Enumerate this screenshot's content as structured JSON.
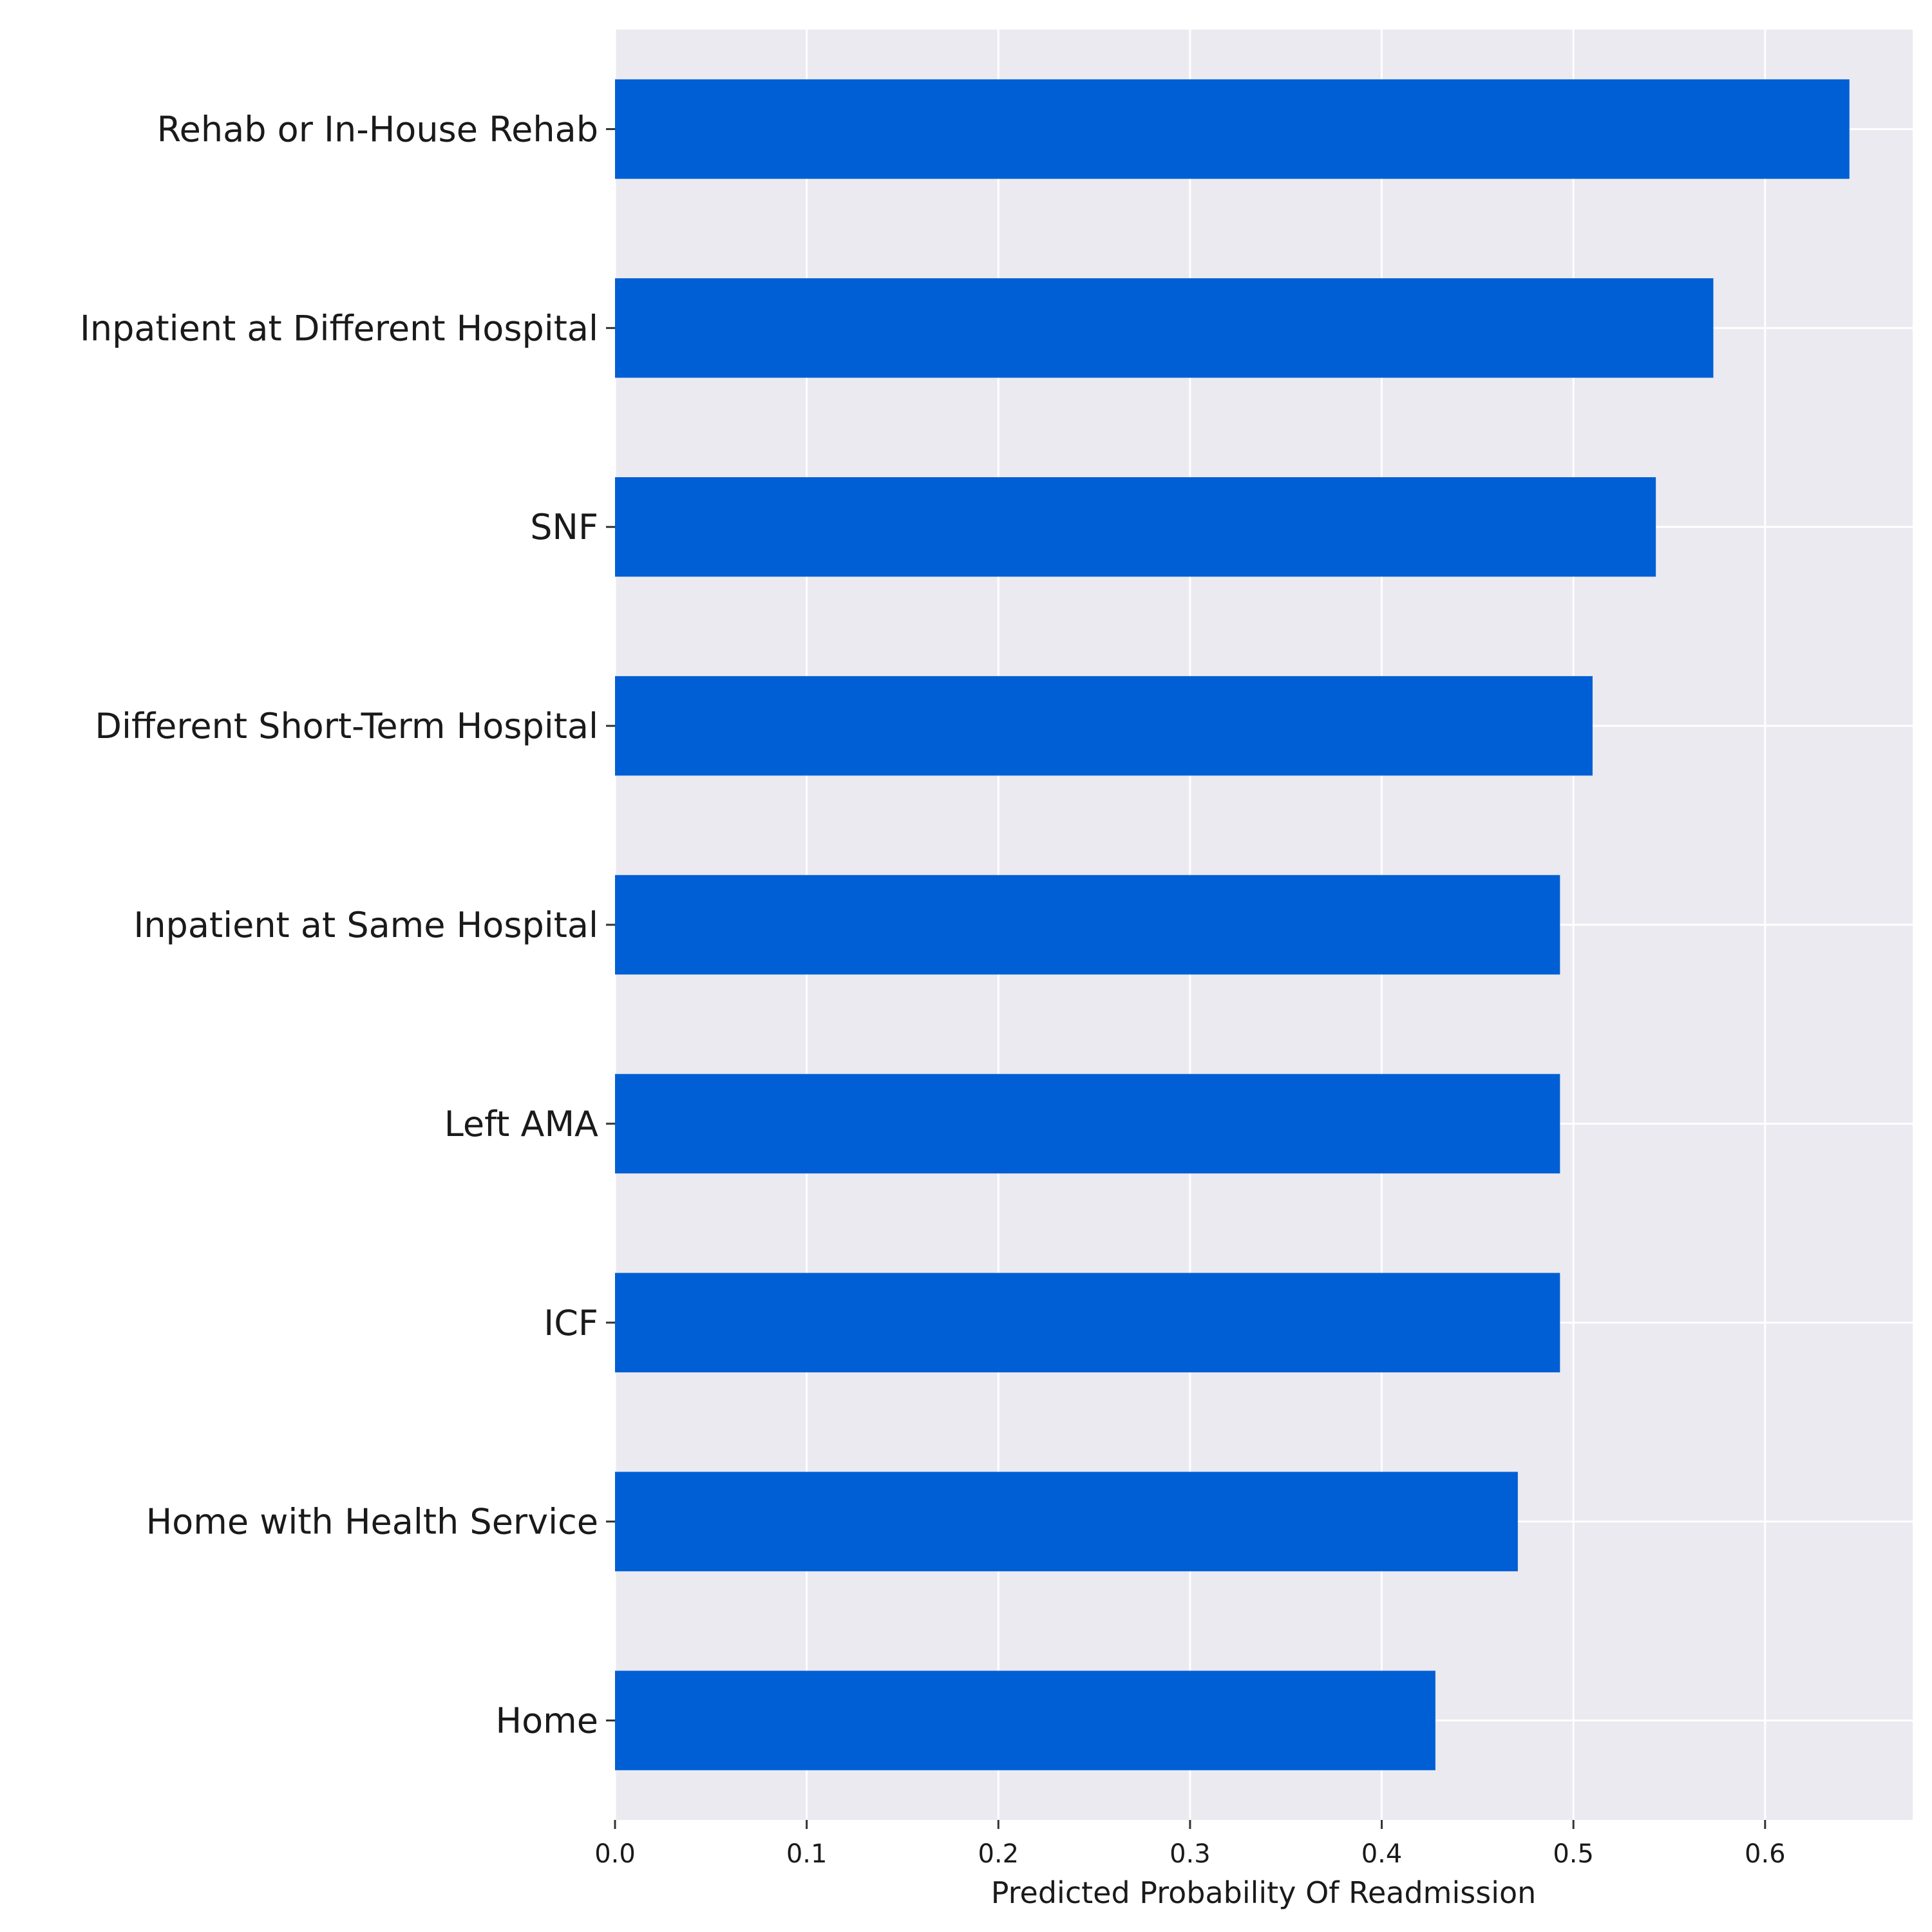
{
  "chart_data": {
    "type": "bar",
    "orientation": "horizontal",
    "title": "",
    "xlabel": "Predicted Probability Of Readmission",
    "ylabel": "",
    "categories": [
      "Rehab or In-House Rehab",
      "Inpatient at Different Hospital",
      "SNF",
      "Different Short-Term Hospital",
      "Inpatient at Same Hospital",
      "Left AMA",
      "ICF",
      "Home with Health Service",
      "Home"
    ],
    "values": [
      0.644,
      0.573,
      0.543,
      0.51,
      0.493,
      0.493,
      0.493,
      0.471,
      0.428
    ],
    "xlim": [
      0,
      0.677
    ],
    "xticks": [
      "0.0",
      "0.1",
      "0.2",
      "0.3",
      "0.4",
      "0.5",
      "0.6"
    ],
    "xtick_values": [
      0,
      0.1,
      0.2,
      0.3,
      0.4,
      0.5,
      0.6
    ],
    "grid": true,
    "bar_color": "#005fd4",
    "background_color": "#eaeaf0",
    "grid_color": "#ffffff"
  }
}
